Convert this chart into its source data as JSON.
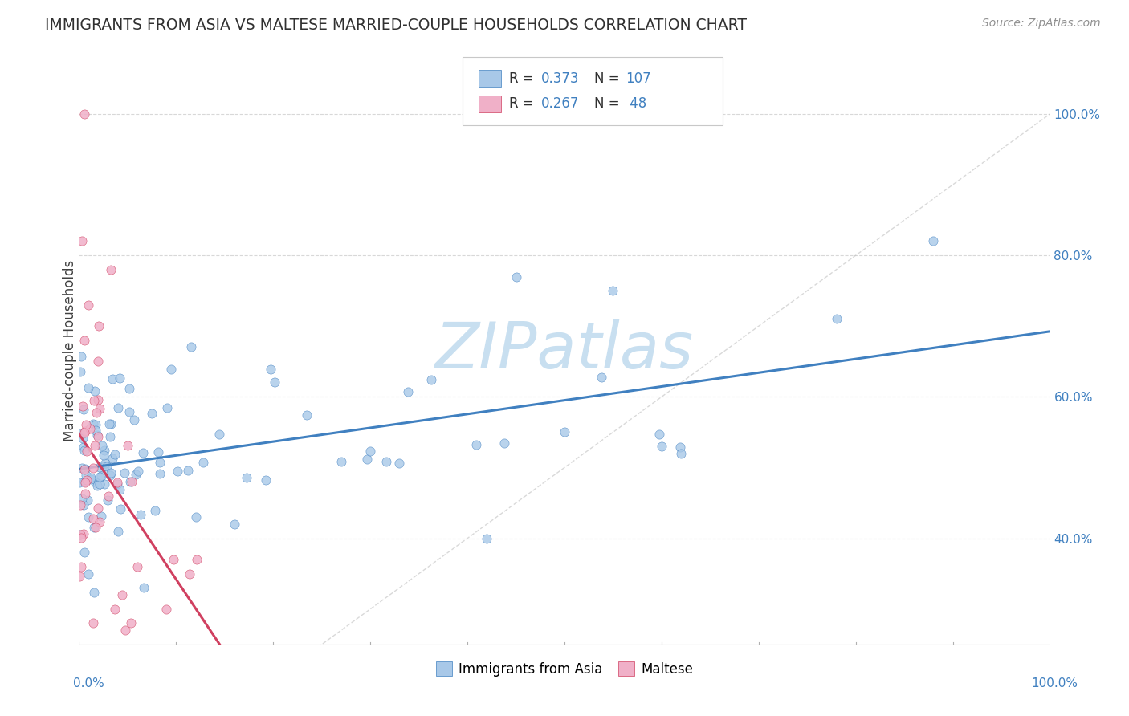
{
  "title": "IMMIGRANTS FROM ASIA VS MALTESE MARRIED-COUPLE HOUSEHOLDS CORRELATION CHART",
  "source": "Source: ZipAtlas.com",
  "ylabel": "Married-couple Households",
  "legend_labels": [
    "Immigrants from Asia",
    "Maltese"
  ],
  "blue_R": 0.373,
  "blue_N": 107,
  "pink_R": 0.267,
  "pink_N": 48,
  "blue_color": "#a8c8e8",
  "pink_color": "#f0b0c8",
  "blue_line_color": "#4080c0",
  "pink_line_color": "#d04060",
  "diagonal_color": "#c0c0c0",
  "watermark": "ZIPatlas",
  "watermark_color": "#c8dff0",
  "background_color": "#ffffff",
  "grid_color": "#d8d8d8",
  "title_color": "#303030",
  "source_color": "#909090",
  "tick_color": "#4080c0",
  "xlim": [
    0.0,
    1.0
  ],
  "ylim": [
    0.25,
    1.08
  ],
  "ytick_vals": [
    0.4,
    0.6,
    0.8,
    1.0
  ],
  "ytick_labels": [
    "40.0%",
    "60.0%",
    "80.0%",
    "100.0%"
  ]
}
